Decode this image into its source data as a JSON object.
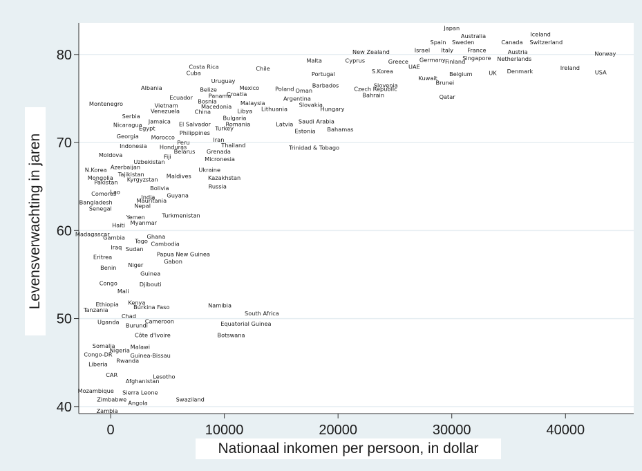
{
  "chart_data": {
    "type": "scatter",
    "title": "",
    "xlabel": "Nationaal inkomen per persoon, in dollar",
    "ylabel": "Levensverwachting in jaren",
    "xlim": [
      -2800,
      46000
    ],
    "ylim": [
      39.2,
      83.6
    ],
    "xticks": [
      0,
      10000,
      20000,
      30000,
      40000
    ],
    "yticks": [
      40,
      50,
      60,
      70,
      80
    ],
    "xtick_labels": [
      "0",
      "10000",
      "20000",
      "30000",
      "40000"
    ],
    "ytick_labels": [
      "40",
      "50",
      "60",
      "70",
      "80"
    ],
    "grid": "horizontal",
    "marker": "country-name",
    "colors": {
      "page_bg": "#e8f0f3",
      "plot_bg": "#ffffff",
      "grid": "#e6eef2",
      "text": "#1a1a1a"
    },
    "points": [
      {
        "label": "Japan",
        "x": 30000,
        "y": 83.0
      },
      {
        "label": "Australia",
        "x": 31900,
        "y": 82.1
      },
      {
        "label": "Iceland",
        "x": 37800,
        "y": 82.3
      },
      {
        "label": "Spain",
        "x": 28800,
        "y": 81.4
      },
      {
        "label": "Sweden",
        "x": 31000,
        "y": 81.4
      },
      {
        "label": "Canada",
        "x": 35300,
        "y": 81.4
      },
      {
        "label": "Switzerland",
        "x": 38300,
        "y": 81.4
      },
      {
        "label": "New Zealand",
        "x": 22900,
        "y": 80.3
      },
      {
        "label": "Israel",
        "x": 27400,
        "y": 80.5
      },
      {
        "label": "Italy",
        "x": 29600,
        "y": 80.5
      },
      {
        "label": "France",
        "x": 32200,
        "y": 80.5
      },
      {
        "label": "Austria",
        "x": 35800,
        "y": 80.3
      },
      {
        "label": "Norway",
        "x": 43500,
        "y": 80.1
      },
      {
        "label": "Malta",
        "x": 17900,
        "y": 79.3
      },
      {
        "label": "Cyprus",
        "x": 21500,
        "y": 79.3
      },
      {
        "label": "Greece",
        "x": 25300,
        "y": 79.2
      },
      {
        "label": "Germany",
        "x": 28300,
        "y": 79.4
      },
      {
        "label": "Finland",
        "x": 30300,
        "y": 79.2
      },
      {
        "label": "Singapore",
        "x": 32200,
        "y": 79.6
      },
      {
        "label": "Netherlands",
        "x": 35500,
        "y": 79.5
      },
      {
        "label": "Costa Rica",
        "x": 8200,
        "y": 78.6
      },
      {
        "label": "Chile",
        "x": 13400,
        "y": 78.4
      },
      {
        "label": "UAE",
        "x": 26700,
        "y": 78.6
      },
      {
        "label": "Ireland",
        "x": 40400,
        "y": 78.5
      },
      {
        "label": "Cuba",
        "x": 7300,
        "y": 77.9
      },
      {
        "label": "Portugal",
        "x": 18700,
        "y": 77.8
      },
      {
        "label": "S.Korea",
        "x": 23900,
        "y": 78.1
      },
      {
        "label": "Belgium",
        "x": 30800,
        "y": 77.8
      },
      {
        "label": "UK",
        "x": 33600,
        "y": 77.9
      },
      {
        "label": "Denmark",
        "x": 36000,
        "y": 78.1
      },
      {
        "label": "USA",
        "x": 43100,
        "y": 78.0
      },
      {
        "label": "Kuwait",
        "x": 27900,
        "y": 77.3
      },
      {
        "label": "Uruguay",
        "x": 9900,
        "y": 77.0
      },
      {
        "label": "Barbados",
        "x": 18900,
        "y": 76.5
      },
      {
        "label": "Slovenia",
        "x": 24200,
        "y": 76.5
      },
      {
        "label": "Brunei",
        "x": 29400,
        "y": 76.8
      },
      {
        "label": "Albania",
        "x": 3600,
        "y": 76.2
      },
      {
        "label": "Mexico",
        "x": 12200,
        "y": 76.2
      },
      {
        "label": "Poland",
        "x": 15300,
        "y": 76.1
      },
      {
        "label": "Czech Republic",
        "x": 23300,
        "y": 76.1
      },
      {
        "label": "Belize",
        "x": 8600,
        "y": 76.0
      },
      {
        "label": "Oman",
        "x": 17000,
        "y": 75.9
      },
      {
        "label": "Croatia",
        "x": 11100,
        "y": 75.5
      },
      {
        "label": "Panama",
        "x": 9600,
        "y": 75.3
      },
      {
        "label": "Bahrain",
        "x": 23100,
        "y": 75.4
      },
      {
        "label": "Qatar",
        "x": 29600,
        "y": 75.2
      },
      {
        "label": "Ecuador",
        "x": 6200,
        "y": 75.1
      },
      {
        "label": "Argentina",
        "x": 16400,
        "y": 75.0
      },
      {
        "label": "Bosnia",
        "x": 8500,
        "y": 74.7
      },
      {
        "label": "Malaysia",
        "x": 12500,
        "y": 74.5
      },
      {
        "label": "Slovakia",
        "x": 17600,
        "y": 74.3
      },
      {
        "label": "Montenegro",
        "x": -400,
        "y": 74.4
      },
      {
        "label": "Vietnam",
        "x": 4900,
        "y": 74.2
      },
      {
        "label": "Macedonia",
        "x": 9300,
        "y": 74.1
      },
      {
        "label": "Hungary",
        "x": 19500,
        "y": 73.8
      },
      {
        "label": "Venezuela",
        "x": 4800,
        "y": 73.6
      },
      {
        "label": "China",
        "x": 8100,
        "y": 73.5
      },
      {
        "label": "Libya",
        "x": 11800,
        "y": 73.6
      },
      {
        "label": "Lithuania",
        "x": 14400,
        "y": 73.8
      },
      {
        "label": "Serbia",
        "x": 1800,
        "y": 73.0
      },
      {
        "label": "Bulgaria",
        "x": 10900,
        "y": 72.8
      },
      {
        "label": "Jamaica",
        "x": 4300,
        "y": 72.4
      },
      {
        "label": "El Salvador",
        "x": 7400,
        "y": 72.1
      },
      {
        "label": "Romania",
        "x": 11200,
        "y": 72.1
      },
      {
        "label": "Latvia",
        "x": 15300,
        "y": 72.1
      },
      {
        "label": "Saudi Arabia",
        "x": 18100,
        "y": 72.4
      },
      {
        "label": "Nicaragua",
        "x": 1500,
        "y": 72.0
      },
      {
        "label": "Egypt",
        "x": 3200,
        "y": 71.6
      },
      {
        "label": "Turkey",
        "x": 10000,
        "y": 71.6
      },
      {
        "label": "Bahamas",
        "x": 20200,
        "y": 71.5
      },
      {
        "label": "Estonia",
        "x": 17100,
        "y": 71.3
      },
      {
        "label": "Philippines",
        "x": 7400,
        "y": 71.1
      },
      {
        "label": "Georgia",
        "x": 1500,
        "y": 70.7
      },
      {
        "label": "Morocco",
        "x": 4600,
        "y": 70.6
      },
      {
        "label": "Iran",
        "x": 9500,
        "y": 70.3
      },
      {
        "label": "Peru",
        "x": 6400,
        "y": 70.0
      },
      {
        "label": "Thailand",
        "x": 10800,
        "y": 69.7
      },
      {
        "label": "Indonesia",
        "x": 2000,
        "y": 69.6
      },
      {
        "label": "Honduras",
        "x": 5500,
        "y": 69.5
      },
      {
        "label": "Trinidad & Tobago",
        "x": 17900,
        "y": 69.4
      },
      {
        "label": "Belarus",
        "x": 6500,
        "y": 69.0
      },
      {
        "label": "Grenada",
        "x": 9500,
        "y": 69.0
      },
      {
        "label": "Moldova",
        "x": 0,
        "y": 68.6
      },
      {
        "label": "Fiji",
        "x": 5000,
        "y": 68.4
      },
      {
        "label": "Micronesia",
        "x": 9600,
        "y": 68.1
      },
      {
        "label": "Uzbekistan",
        "x": 3400,
        "y": 67.8
      },
      {
        "label": "Azerbaijan",
        "x": 1300,
        "y": 67.2
      },
      {
        "label": "N.Korea",
        "x": -1300,
        "y": 66.9
      },
      {
        "label": "Ukraine",
        "x": 8700,
        "y": 66.9
      },
      {
        "label": "Tajikistan",
        "x": 1800,
        "y": 66.4
      },
      {
        "label": "Maldives",
        "x": 6000,
        "y": 66.2
      },
      {
        "label": "Kazakhstan",
        "x": 10000,
        "y": 66.0
      },
      {
        "label": "Mongolia",
        "x": -900,
        "y": 66.0
      },
      {
        "label": "Kyrgyzstan",
        "x": 2800,
        "y": 65.8
      },
      {
        "label": "Pakistan",
        "x": -400,
        "y": 65.5
      },
      {
        "label": "Russia",
        "x": 9400,
        "y": 65.0
      },
      {
        "label": "Bolivia",
        "x": 4300,
        "y": 64.8
      },
      {
        "label": "Comoros",
        "x": -600,
        "y": 64.2
      },
      {
        "label": "Lao",
        "x": 400,
        "y": 64.4
      },
      {
        "label": "Guyana",
        "x": 5900,
        "y": 64.0
      },
      {
        "label": "India",
        "x": 3300,
        "y": 63.8
      },
      {
        "label": "Mauritania",
        "x": 3600,
        "y": 63.4
      },
      {
        "label": "Bangladesh",
        "x": -1300,
        "y": 63.2
      },
      {
        "label": "Nepal",
        "x": 2800,
        "y": 62.8
      },
      {
        "label": "Senegal",
        "x": -900,
        "y": 62.5
      },
      {
        "label": "Yemen",
        "x": 2200,
        "y": 61.5
      },
      {
        "label": "Turkmenistan",
        "x": 6200,
        "y": 61.7
      },
      {
        "label": "Haiti",
        "x": 700,
        "y": 60.6
      },
      {
        "label": "Myanmar",
        "x": 2900,
        "y": 60.9
      },
      {
        "label": "Madagascar",
        "x": -1600,
        "y": 59.6
      },
      {
        "label": "Ghana",
        "x": 4000,
        "y": 59.3
      },
      {
        "label": "Gambia",
        "x": 300,
        "y": 59.2
      },
      {
        "label": "Togo",
        "x": 2700,
        "y": 58.8
      },
      {
        "label": "Cambodia",
        "x": 4800,
        "y": 58.5
      },
      {
        "label": "Iraq",
        "x": 500,
        "y": 58.1
      },
      {
        "label": "Sudan",
        "x": 2100,
        "y": 57.9
      },
      {
        "label": "Papua New Guinea",
        "x": 6400,
        "y": 57.3
      },
      {
        "label": "Eritrea",
        "x": -700,
        "y": 57.0
      },
      {
        "label": "Gabon",
        "x": 5500,
        "y": 56.5
      },
      {
        "label": "Niger",
        "x": 2200,
        "y": 56.1
      },
      {
        "label": "Benin",
        "x": -200,
        "y": 55.8
      },
      {
        "label": "Guinea",
        "x": 3500,
        "y": 55.1
      },
      {
        "label": "Congo",
        "x": -200,
        "y": 54.0
      },
      {
        "label": "Djibouti",
        "x": 3500,
        "y": 53.9
      },
      {
        "label": "Mali",
        "x": 1100,
        "y": 53.1
      },
      {
        "label": "Kenya",
        "x": 2300,
        "y": 51.8
      },
      {
        "label": "Ethiopia",
        "x": -300,
        "y": 51.6
      },
      {
        "label": "Burkina Faso",
        "x": 3600,
        "y": 51.3
      },
      {
        "label": "Namibia",
        "x": 9600,
        "y": 51.5
      },
      {
        "label": "Tanzania",
        "x": -1300,
        "y": 51.0
      },
      {
        "label": "South Africa",
        "x": 13300,
        "y": 50.6
      },
      {
        "label": "Chad",
        "x": 1600,
        "y": 50.3
      },
      {
        "label": "Uganda",
        "x": -200,
        "y": 49.6
      },
      {
        "label": "Cameroon",
        "x": 4300,
        "y": 49.7
      },
      {
        "label": "Burundi",
        "x": 2300,
        "y": 49.2
      },
      {
        "label": "Equatorial Guinea",
        "x": 11900,
        "y": 49.4
      },
      {
        "label": "Côte d'Ivoire",
        "x": 3700,
        "y": 48.1
      },
      {
        "label": "Botswana",
        "x": 10600,
        "y": 48.1
      },
      {
        "label": "Somalia",
        "x": -600,
        "y": 46.9
      },
      {
        "label": "Malawi",
        "x": 2600,
        "y": 46.8
      },
      {
        "label": "Nigeria",
        "x": 800,
        "y": 46.4
      },
      {
        "label": "Congo-DR",
        "x": -1100,
        "y": 45.9
      },
      {
        "label": "Guinea-Bissau",
        "x": 3500,
        "y": 45.8
      },
      {
        "label": "Rwanda",
        "x": 1500,
        "y": 45.2
      },
      {
        "label": "Liberia",
        "x": -1100,
        "y": 44.8
      },
      {
        "label": "CAR",
        "x": 100,
        "y": 43.6
      },
      {
        "label": "Lesotho",
        "x": 4700,
        "y": 43.4
      },
      {
        "label": "Afghanistan",
        "x": 2800,
        "y": 42.9
      },
      {
        "label": "Mozambique",
        "x": -1300,
        "y": 41.8
      },
      {
        "label": "Sierra Leone",
        "x": 2600,
        "y": 41.6
      },
      {
        "label": "Swaziland",
        "x": 7000,
        "y": 40.8
      },
      {
        "label": "Zimbabwe",
        "x": 100,
        "y": 40.8
      },
      {
        "label": "Angola",
        "x": 2400,
        "y": 40.4
      },
      {
        "label": "Zambia",
        "x": -300,
        "y": 39.5
      }
    ]
  }
}
